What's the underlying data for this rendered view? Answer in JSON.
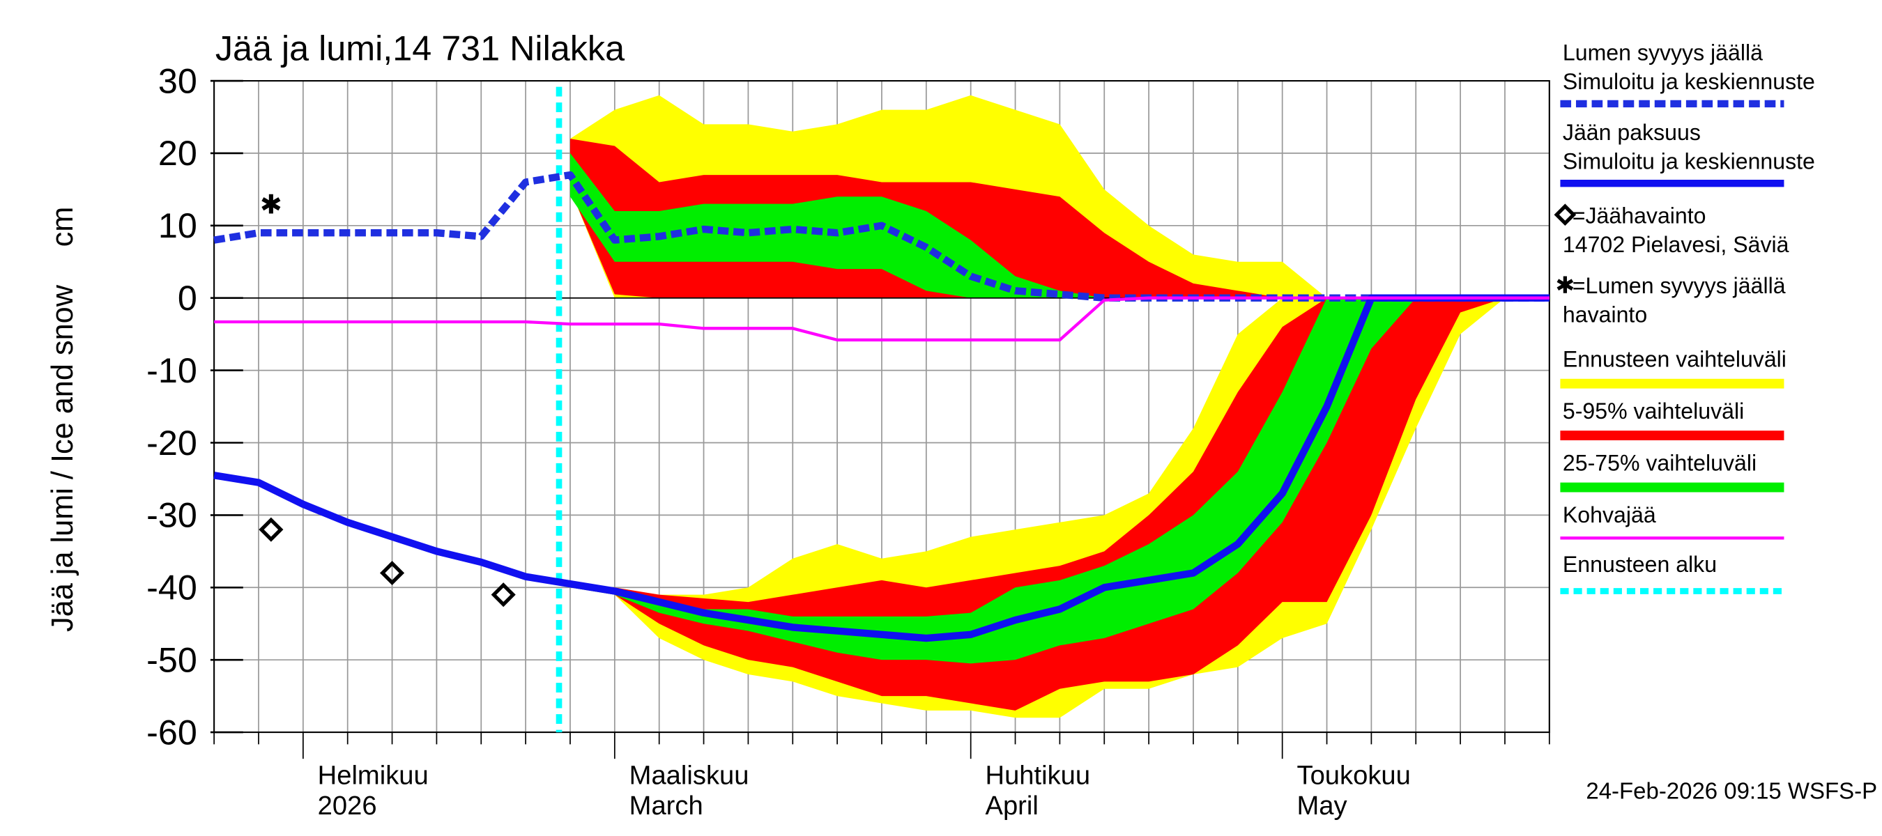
{
  "chart_data": {
    "type": "line",
    "title": "Jää ja lumi,14 731 Nilakka",
    "ylabel": "Jää ja lumi / Ice and snow",
    "yunit": "cm",
    "footer": "24-Feb-2026 09:15 WSFS-P",
    "categories": [
      null,
      null,
      "Helmikuu",
      null,
      null,
      null,
      null,
      null,
      null,
      "Maaliskuu",
      null,
      null,
      null,
      null,
      null,
      null,
      null,
      "Huhtikuu",
      null,
      null,
      null,
      null,
      null,
      null,
      "Toukokuu",
      null,
      null,
      null,
      null,
      null,
      null
    ],
    "category_sublabels": [
      null,
      null,
      "2026",
      null,
      null,
      null,
      null,
      null,
      null,
      "March",
      null,
      null,
      null,
      null,
      null,
      null,
      null,
      "April",
      null,
      null,
      null,
      null,
      null,
      null,
      "May",
      null,
      null,
      null,
      null,
      null,
      null
    ],
    "ylim": [
      -60,
      30
    ],
    "yticks": [
      -60,
      -50,
      -40,
      -30,
      -20,
      -10,
      0,
      10,
      20,
      30
    ],
    "grid": true,
    "series": [
      {
        "name": "Lumen syvyys jäällä",
        "description": "Simuloitu ja keskiennuste",
        "color": "#1f2fe0",
        "dashed": true,
        "values": [
          8,
          9,
          9,
          9,
          9,
          9,
          8.5,
          16,
          17,
          8,
          8.5,
          9.5,
          9,
          9.5,
          9,
          10,
          7,
          3,
          1,
          0.5,
          0,
          0,
          0,
          0,
          0,
          0,
          0,
          0,
          0,
          0,
          0
        ]
      },
      {
        "name": "Jään paksuus",
        "description": "Simuloitu ja keskiennuste",
        "color": "#1010f0",
        "dashed": false,
        "values": [
          -24.5,
          -25.5,
          -28.5,
          -31,
          -33,
          -35,
          -36.5,
          -38.5,
          -39.5,
          -40.5,
          -42,
          -43.5,
          -44.5,
          -45.5,
          -46,
          -46.5,
          -47,
          -46.5,
          -44.5,
          -43,
          -40,
          -39,
          -38,
          -34,
          -27,
          -15,
          0,
          0,
          0,
          0,
          0
        ]
      },
      {
        "name": "Kohvajää",
        "color": "#ff00ff",
        "dashed": false,
        "values": [
          -3.3,
          -3.3,
          -3.3,
          -3.3,
          -3.3,
          -3.3,
          -3.3,
          -3.3,
          -3.6,
          -3.6,
          -3.6,
          -4.2,
          -4.2,
          -4.2,
          -5.8,
          -5.8,
          -5.8,
          -5.8,
          -5.8,
          -5.8,
          -0.3,
          0,
          0,
          0,
          0,
          0,
          0,
          0,
          0,
          0,
          0
        ]
      }
    ],
    "bands": [
      {
        "name": "Ennusteen vaihteluväli",
        "color": "#ffff00",
        "snow_low": [
          null,
          null,
          null,
          null,
          null,
          null,
          null,
          null,
          15,
          0,
          0,
          0,
          0,
          0,
          0,
          0,
          0,
          0,
          0,
          0,
          0,
          0,
          0,
          0,
          0,
          0,
          null,
          null,
          null,
          null,
          null
        ],
        "snow_high": [
          null,
          null,
          null,
          null,
          null,
          null,
          null,
          null,
          22,
          26,
          28,
          24,
          24,
          23,
          24,
          26,
          26,
          28,
          26,
          24,
          15,
          10,
          6,
          5,
          5,
          0,
          null,
          null,
          null,
          null,
          null
        ],
        "ice_low": [
          null,
          null,
          null,
          null,
          null,
          null,
          null,
          null,
          -40,
          -41,
          -47,
          -50,
          -52,
          -53,
          -55,
          -56,
          -57,
          -57,
          -58,
          -58,
          -54,
          -54,
          -52,
          -51,
          -47,
          -45,
          -32,
          -18,
          -5,
          0,
          null
        ],
        "ice_high": [
          null,
          null,
          null,
          null,
          null,
          null,
          null,
          null,
          -39.5,
          -40,
          -41,
          -41,
          -40,
          -36,
          -34,
          -36,
          -35,
          -33,
          -32,
          -31,
          -30,
          -27,
          -18,
          -5,
          0,
          0,
          0,
          0,
          0,
          0,
          null
        ]
      },
      {
        "name": "5-95% vaihteluväli",
        "color": "#ff0000",
        "snow_low": [
          null,
          null,
          null,
          null,
          null,
          null,
          null,
          null,
          15,
          0.5,
          0,
          0,
          0,
          0,
          0,
          0,
          0,
          0,
          0,
          0,
          0,
          0,
          0,
          0,
          0,
          null,
          null,
          null,
          null,
          null,
          null
        ],
        "snow_high": [
          null,
          null,
          null,
          null,
          null,
          null,
          null,
          null,
          22,
          21,
          16,
          17,
          17,
          17,
          17,
          16,
          16,
          16,
          15,
          14,
          9,
          5,
          2,
          1,
          0,
          null,
          null,
          null,
          null,
          null,
          null
        ],
        "ice_low": [
          null,
          null,
          null,
          null,
          null,
          null,
          null,
          null,
          -40,
          -41,
          -45,
          -48,
          -50,
          -51,
          -53,
          -55,
          -55,
          -56,
          -57,
          -54,
          -53,
          -53,
          -52,
          -48,
          -42,
          -42,
          -30,
          -14,
          -2,
          0,
          null
        ],
        "ice_high": [
          null,
          null,
          null,
          null,
          null,
          null,
          null,
          null,
          -39.5,
          -40,
          -41,
          -41.5,
          -42,
          -41,
          -40,
          -39,
          -40,
          -39,
          -38,
          -37,
          -35,
          -30,
          -24,
          -13,
          -4,
          0,
          0,
          0,
          0,
          0,
          null
        ]
      },
      {
        "name": "25-75% vaihteluväli",
        "color": "#00ee00",
        "snow_low": [
          null,
          null,
          null,
          null,
          null,
          null,
          null,
          null,
          14,
          5,
          5,
          5,
          5,
          5,
          4,
          4,
          1,
          0,
          0,
          0,
          0,
          null,
          null,
          null,
          null,
          null,
          null,
          null,
          null,
          null,
          null
        ],
        "snow_high": [
          null,
          null,
          null,
          null,
          null,
          null,
          null,
          null,
          20,
          12,
          12,
          13,
          13,
          13,
          14,
          14,
          12,
          8,
          3,
          1,
          0,
          null,
          null,
          null,
          null,
          null,
          null,
          null,
          null,
          null,
          null
        ],
        "ice_low": [
          null,
          null,
          null,
          null,
          null,
          null,
          null,
          null,
          -40,
          -41,
          -43.5,
          -45,
          -46,
          -47.5,
          -49,
          -50,
          -50,
          -50.5,
          -50,
          -48,
          -47,
          -45,
          -43,
          -38,
          -31,
          -20,
          -7,
          0,
          null,
          null,
          null
        ],
        "ice_high": [
          null,
          null,
          null,
          null,
          null,
          null,
          null,
          null,
          -39.5,
          -40.5,
          -41.5,
          -43,
          -43,
          -44,
          -44,
          -44,
          -44,
          -43.5,
          -40,
          -39,
          -37,
          -34,
          -30,
          -24,
          -13,
          0,
          0,
          0,
          null,
          null,
          null
        ]
      }
    ],
    "observations": [
      {
        "name": "=Jäähavainto",
        "description": "14702 Pielavesi, Säviä",
        "marker": "diamond",
        "color": "#000000",
        "x": [
          1.28,
          4,
          6.5
        ],
        "values": [
          -32,
          -38,
          -41
        ]
      },
      {
        "name": "=Lumen syvyys jäällä",
        "description": "havainto",
        "marker": "star",
        "color": "#000000",
        "x": [
          1.28
        ],
        "values": [
          13
        ]
      }
    ],
    "forecast_start": {
      "name": "Ennusteen alku",
      "color": "#00ffff",
      "x": 7.75
    }
  }
}
